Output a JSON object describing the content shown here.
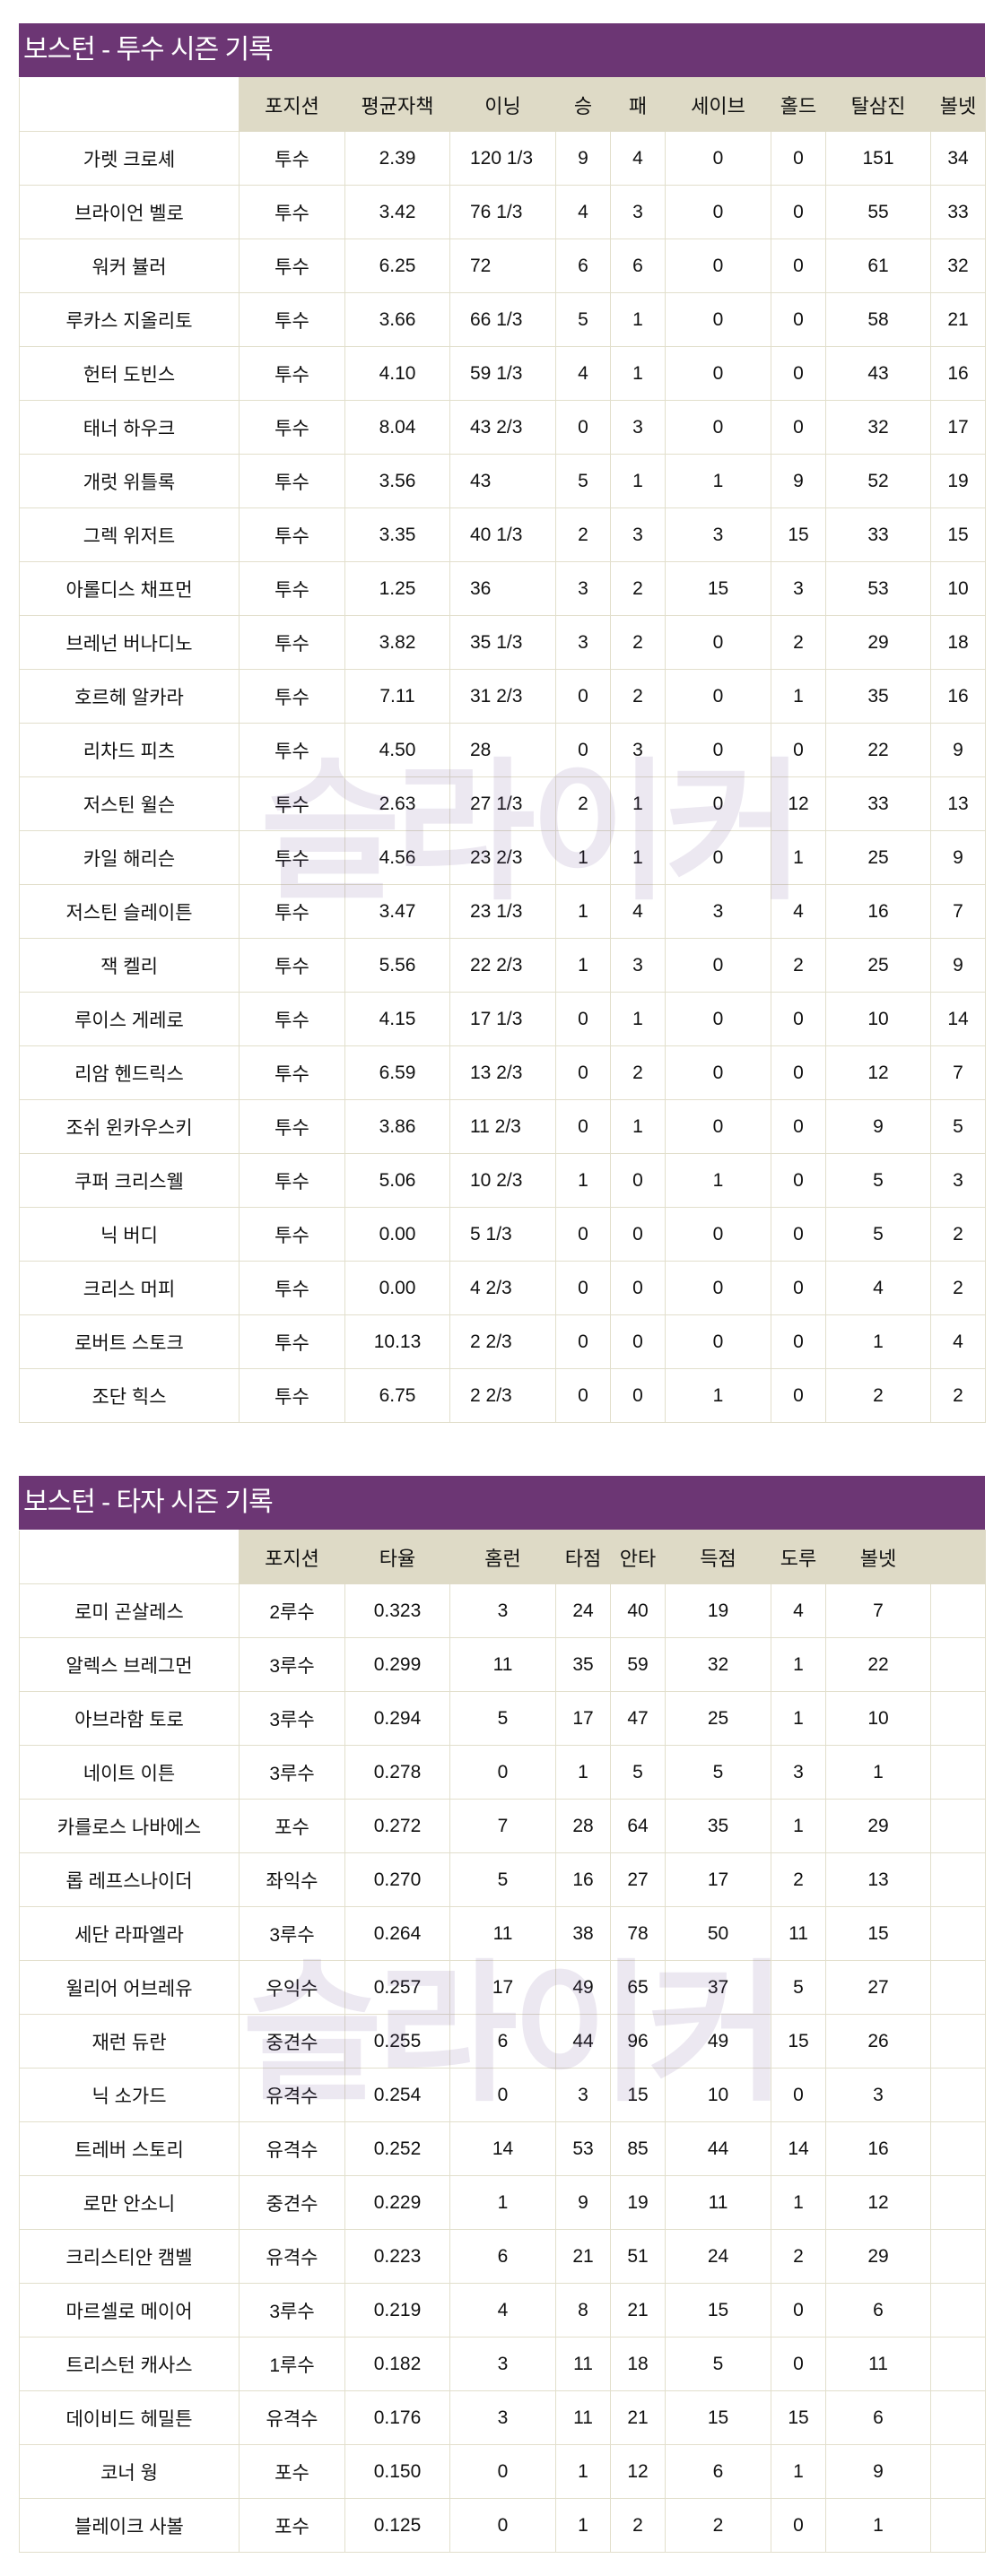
{
  "watermark": "슬라이커",
  "pitchers": {
    "title": "보스턴 - 투수 시즌 기록",
    "headers": [
      "",
      "포지션",
      "평균자책",
      "이닝",
      "승",
      "패",
      "세이브",
      "홀드",
      "탈삼진",
      "볼넷"
    ],
    "rows": [
      [
        "가렛 크로셰",
        "투수",
        "2.39",
        "120 1/3",
        "9",
        "4",
        "0",
        "0",
        "151",
        "34"
      ],
      [
        "브라이언 벨로",
        "투수",
        "3.42",
        "76 1/3",
        "4",
        "3",
        "0",
        "0",
        "55",
        "33"
      ],
      [
        "워커 뷸러",
        "투수",
        "6.25",
        "72",
        "6",
        "6",
        "0",
        "0",
        "61",
        "32"
      ],
      [
        "루카스 지올리토",
        "투수",
        "3.66",
        "66 1/3",
        "5",
        "1",
        "0",
        "0",
        "58",
        "21"
      ],
      [
        "헌터 도빈스",
        "투수",
        "4.10",
        "59 1/3",
        "4",
        "1",
        "0",
        "0",
        "43",
        "16"
      ],
      [
        "태너 하우크",
        "투수",
        "8.04",
        "43 2/3",
        "0",
        "3",
        "0",
        "0",
        "32",
        "17"
      ],
      [
        "개럿 위틀록",
        "투수",
        "3.56",
        "43",
        "5",
        "1",
        "1",
        "9",
        "52",
        "19"
      ],
      [
        "그렉 위저트",
        "투수",
        "3.35",
        "40 1/3",
        "2",
        "3",
        "3",
        "15",
        "33",
        "15"
      ],
      [
        "아롤디스 채프먼",
        "투수",
        "1.25",
        "36",
        "3",
        "2",
        "15",
        "3",
        "53",
        "10"
      ],
      [
        "브레넌 버나디노",
        "투수",
        "3.82",
        "35 1/3",
        "3",
        "2",
        "0",
        "2",
        "29",
        "18"
      ],
      [
        "호르헤 알카라",
        "투수",
        "7.11",
        "31 2/3",
        "0",
        "2",
        "0",
        "1",
        "35",
        "16"
      ],
      [
        "리차드 피츠",
        "투수",
        "4.50",
        "28",
        "0",
        "3",
        "0",
        "0",
        "22",
        "9"
      ],
      [
        "저스틴 윌슨",
        "투수",
        "2.63",
        "27 1/3",
        "2",
        "1",
        "0",
        "12",
        "33",
        "13"
      ],
      [
        "카일 해리슨",
        "투수",
        "4.56",
        "23 2/3",
        "1",
        "1",
        "0",
        "1",
        "25",
        "9"
      ],
      [
        "저스틴 슬레이튼",
        "투수",
        "3.47",
        "23 1/3",
        "1",
        "4",
        "3",
        "4",
        "16",
        "7"
      ],
      [
        "잭 켈리",
        "투수",
        "5.56",
        "22 2/3",
        "1",
        "3",
        "0",
        "2",
        "25",
        "9"
      ],
      [
        "루이스 게레로",
        "투수",
        "4.15",
        "17 1/3",
        "0",
        "1",
        "0",
        "0",
        "10",
        "14"
      ],
      [
        "리암 헨드릭스",
        "투수",
        "6.59",
        "13 2/3",
        "0",
        "2",
        "0",
        "0",
        "12",
        "7"
      ],
      [
        "조쉬 윈카우스키",
        "투수",
        "3.86",
        "11 2/3",
        "0",
        "1",
        "0",
        "0",
        "9",
        "5"
      ],
      [
        "쿠퍼 크리스웰",
        "투수",
        "5.06",
        "10 2/3",
        "1",
        "0",
        "1",
        "0",
        "5",
        "3"
      ],
      [
        "닉 버디",
        "투수",
        "0.00",
        "5 1/3",
        "0",
        "0",
        "0",
        "0",
        "5",
        "2"
      ],
      [
        "크리스 머피",
        "투수",
        "0.00",
        "4 2/3",
        "0",
        "0",
        "0",
        "0",
        "4",
        "2"
      ],
      [
        "로버트 스토크",
        "투수",
        "10.13",
        "2 2/3",
        "0",
        "0",
        "0",
        "0",
        "1",
        "4"
      ],
      [
        "조단 힉스",
        "투수",
        "6.75",
        "2 2/3",
        "0",
        "0",
        "1",
        "0",
        "2",
        "2"
      ]
    ]
  },
  "batters": {
    "title": "보스턴 - 타자 시즌 기록",
    "headers": [
      "",
      "포지션",
      "타율",
      "홈런",
      "타점",
      "안타",
      "득점",
      "도루",
      "볼넷",
      ""
    ],
    "rows": [
      [
        "로미 곤살레스",
        "2루수",
        "0.323",
        "3",
        "24",
        "40",
        "19",
        "4",
        "7",
        ""
      ],
      [
        "알렉스 브레그먼",
        "3루수",
        "0.299",
        "11",
        "35",
        "59",
        "32",
        "1",
        "22",
        ""
      ],
      [
        "아브라함 토로",
        "3루수",
        "0.294",
        "5",
        "17",
        "47",
        "25",
        "1",
        "10",
        ""
      ],
      [
        "네이트 이튼",
        "3루수",
        "0.278",
        "0",
        "1",
        "5",
        "5",
        "3",
        "1",
        ""
      ],
      [
        "카를로스 나바에스",
        "포수",
        "0.272",
        "7",
        "28",
        "64",
        "35",
        "1",
        "29",
        ""
      ],
      [
        "롭 레프스나이더",
        "좌익수",
        "0.270",
        "5",
        "16",
        "27",
        "17",
        "2",
        "13",
        ""
      ],
      [
        "세단 라파엘라",
        "3루수",
        "0.264",
        "11",
        "38",
        "78",
        "50",
        "11",
        "15",
        ""
      ],
      [
        "윌리어 어브레유",
        "우익수",
        "0.257",
        "17",
        "49",
        "65",
        "37",
        "5",
        "27",
        ""
      ],
      [
        "재런 듀란",
        "중견수",
        "0.255",
        "6",
        "44",
        "96",
        "49",
        "15",
        "26",
        ""
      ],
      [
        "닉 소가드",
        "유격수",
        "0.254",
        "0",
        "3",
        "15",
        "10",
        "0",
        "3",
        ""
      ],
      [
        "트레버 스토리",
        "유격수",
        "0.252",
        "14",
        "53",
        "85",
        "44",
        "14",
        "16",
        ""
      ],
      [
        "로만 안소니",
        "중견수",
        "0.229",
        "1",
        "9",
        "19",
        "11",
        "1",
        "12",
        ""
      ],
      [
        "크리스티안 캠벨",
        "유격수",
        "0.223",
        "6",
        "21",
        "51",
        "24",
        "2",
        "29",
        ""
      ],
      [
        "마르셀로 메이어",
        "3루수",
        "0.219",
        "4",
        "8",
        "21",
        "15",
        "0",
        "6",
        ""
      ],
      [
        "트리스턴 캐사스",
        "1루수",
        "0.182",
        "3",
        "11",
        "18",
        "5",
        "0",
        "11",
        ""
      ],
      [
        "데이비드 헤밀튼",
        "유격수",
        "0.176",
        "3",
        "11",
        "21",
        "15",
        "15",
        "6",
        ""
      ],
      [
        "코너 웡",
        "포수",
        "0.150",
        "0",
        "1",
        "12",
        "6",
        "1",
        "9",
        ""
      ],
      [
        "블레이크 사볼",
        "포수",
        "0.125",
        "0",
        "1",
        "2",
        "2",
        "0",
        "1",
        ""
      ]
    ]
  }
}
